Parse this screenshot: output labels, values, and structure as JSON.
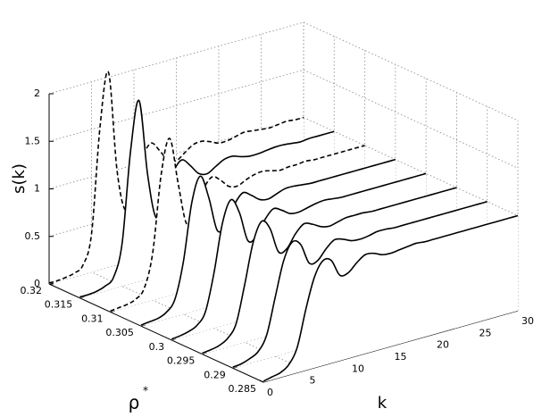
{
  "chart_data": {
    "type": "waterfall3d",
    "xlabel": "k",
    "ylabel": "ρ",
    "ylabel_sup": "*",
    "zlabel": "s(k)",
    "color": "#000000",
    "grid": true,
    "xlim": [
      0,
      30
    ],
    "xticks": [
      0,
      5,
      10,
      15,
      20,
      25,
      30
    ],
    "ylim": [
      0.285,
      0.32
    ],
    "yticks": [
      0.285,
      0.29,
      0.295,
      0.3,
      0.305,
      0.31,
      0.315,
      0.32
    ],
    "zlim": [
      0,
      2
    ],
    "zticks": [
      0,
      0.5,
      1,
      1.5,
      2
    ],
    "x": [
      0,
      1,
      2,
      3,
      4,
      5,
      6,
      7,
      8,
      9,
      10,
      11,
      12,
      13,
      14,
      15,
      16,
      17,
      18,
      19,
      20,
      21,
      22,
      23,
      24,
      25,
      26,
      27,
      28,
      29,
      30
    ],
    "series": [
      {
        "rho": 0.32,
        "dashed": true,
        "values": [
          0.01,
          0.01,
          0.02,
          0.04,
          0.1,
          0.4,
          1.5,
          2.05,
          1.0,
          0.55,
          0.75,
          1.05,
          1.18,
          1.08,
          0.95,
          0.92,
          0.98,
          1.04,
          1.05,
          1.02,
          0.98,
          0.98,
          1.0,
          1.02,
          1.01,
          1.0,
          0.99,
          1.0,
          1.01,
          1.0,
          1.0
        ]
      },
      {
        "rho": 0.315,
        "dashed": false,
        "values": [
          0.01,
          0.01,
          0.02,
          0.05,
          0.12,
          0.45,
          1.4,
          1.9,
          1.1,
          0.62,
          0.78,
          1.04,
          1.15,
          1.07,
          0.96,
          0.93,
          0.98,
          1.03,
          1.04,
          1.01,
          0.99,
          0.99,
          1.0,
          1.01,
          1.01,
          1.0,
          0.99,
          1.0,
          1.0,
          1.0,
          1.0
        ]
      },
      {
        "rho": 0.31,
        "dashed": true,
        "values": [
          0.01,
          0.02,
          0.03,
          0.06,
          0.15,
          0.5,
          1.3,
          1.65,
          1.15,
          0.7,
          0.8,
          1.02,
          1.12,
          1.06,
          0.97,
          0.95,
          0.99,
          1.02,
          1.03,
          1.01,
          0.99,
          1.0,
          1.0,
          1.01,
          1.0,
          1.0,
          1.0,
          1.0,
          1.0,
          1.0,
          1.0
        ]
      },
      {
        "rho": 0.305,
        "dashed": false,
        "values": [
          0.01,
          0.02,
          0.03,
          0.07,
          0.18,
          0.55,
          1.15,
          1.4,
          1.15,
          0.78,
          0.82,
          1.0,
          1.1,
          1.05,
          0.98,
          0.96,
          0.99,
          1.02,
          1.02,
          1.01,
          1.0,
          1.0,
          1.0,
          1.0,
          1.0,
          1.0,
          1.0,
          1.0,
          1.0,
          1.0,
          1.0
        ]
      },
      {
        "rho": 0.3,
        "dashed": false,
        "values": [
          0.01,
          0.02,
          0.04,
          0.08,
          0.2,
          0.58,
          1.08,
          1.3,
          1.14,
          0.82,
          0.84,
          0.99,
          1.08,
          1.04,
          0.98,
          0.97,
          0.99,
          1.01,
          1.02,
          1.01,
          1.0,
          1.0,
          1.0,
          1.0,
          1.0,
          1.0,
          1.0,
          1.0,
          1.0,
          1.0,
          1.0
        ]
      },
      {
        "rho": 0.295,
        "dashed": false,
        "values": [
          0.01,
          0.02,
          0.04,
          0.09,
          0.22,
          0.6,
          1.02,
          1.22,
          1.12,
          0.85,
          0.86,
          0.99,
          1.07,
          1.04,
          0.99,
          0.97,
          0.99,
          1.01,
          1.01,
          1.01,
          1.0,
          1.0,
          1.0,
          1.0,
          1.0,
          1.0,
          1.0,
          1.0,
          1.0,
          1.0,
          1.0
        ]
      },
      {
        "rho": 0.29,
        "dashed": false,
        "values": [
          0.01,
          0.02,
          0.05,
          0.1,
          0.25,
          0.62,
          0.98,
          1.15,
          1.1,
          0.88,
          0.88,
          0.98,
          1.05,
          1.03,
          0.99,
          0.98,
          0.99,
          1.01,
          1.01,
          1.0,
          1.0,
          1.0,
          1.0,
          1.0,
          1.0,
          1.0,
          1.0,
          1.0,
          1.0,
          1.0,
          1.0
        ]
      },
      {
        "rho": 0.285,
        "dashed": false,
        "values": [
          0.01,
          0.03,
          0.05,
          0.11,
          0.27,
          0.64,
          0.95,
          1.1,
          1.08,
          0.9,
          0.9,
          0.98,
          1.04,
          1.03,
          0.99,
          0.98,
          0.99,
          1.0,
          1.01,
          1.0,
          1.0,
          1.0,
          1.0,
          1.0,
          1.0,
          1.0,
          1.0,
          1.0,
          1.0,
          1.0,
          1.0
        ]
      }
    ]
  }
}
